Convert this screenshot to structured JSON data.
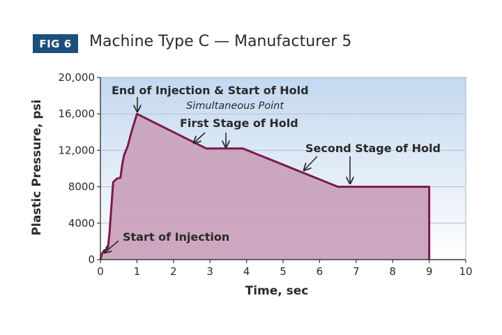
{
  "figure": {
    "badge": "FIG 6",
    "title": "Machine Type C — Manufacturer 5"
  },
  "colors": {
    "badge_bg": "#1d4f7c",
    "line": "#7a1a4e",
    "fill": "#c9a2bc",
    "bg_top": "#c3d8ef",
    "bg_bottom": "#ffffff"
  },
  "chart_data": {
    "type": "area",
    "xlabel": "Time, sec",
    "ylabel": "Plastic Pressure, psi",
    "xlim": [
      0,
      10
    ],
    "ylim": [
      0,
      20000
    ],
    "xticks": [
      "0",
      "1",
      "2",
      "3",
      "4",
      "5",
      "6",
      "7",
      "8",
      "9",
      "10"
    ],
    "yticks": [
      "0",
      "4000",
      "8000",
      "12,000",
      "16,000",
      "20,000"
    ],
    "grid": true,
    "series": [
      {
        "points": [
          [
            0,
            0
          ],
          [
            0.05,
            700
          ],
          [
            0.1,
            1000
          ],
          [
            0.2,
            1100
          ],
          [
            0.25,
            3000
          ],
          [
            0.35,
            8500
          ],
          [
            0.45,
            8900
          ],
          [
            0.55,
            9000
          ],
          [
            0.6,
            10500
          ],
          [
            0.65,
            11500
          ],
          [
            0.75,
            12500
          ],
          [
            0.85,
            14000
          ],
          [
            1.0,
            16000
          ],
          [
            2.9,
            12200
          ],
          [
            3.9,
            12200
          ],
          [
            6.5,
            8000
          ],
          [
            9.0,
            8000
          ],
          [
            9.0,
            0
          ]
        ]
      }
    ],
    "annotations": [
      {
        "text": "End of Injection & Start of Hold",
        "arrow_to": [
          1.0,
          16000
        ]
      },
      {
        "text": "Simultaneous Point"
      },
      {
        "text": "First Stage of Hold",
        "arrow_to": [
          3.5,
          12200
        ]
      },
      {
        "text": "Second Stage of Hold",
        "arrow_to": [
          6.9,
          8000
        ]
      },
      {
        "text": "Start of Injection",
        "arrow_to": [
          0.1,
          400
        ]
      }
    ]
  }
}
